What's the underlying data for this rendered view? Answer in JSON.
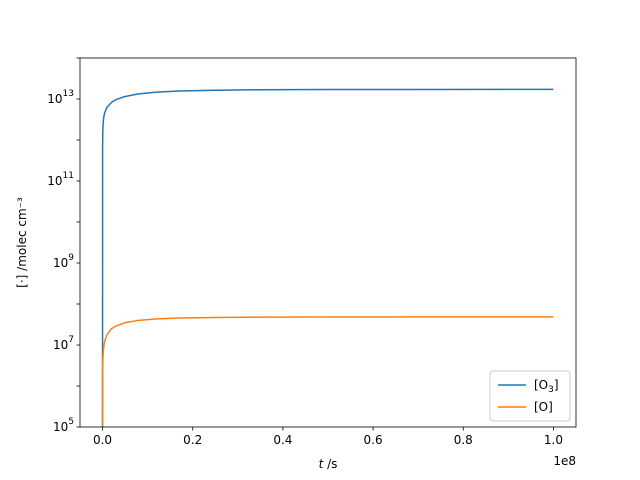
{
  "chart_data": {
    "type": "line",
    "xlabel": "t /s",
    "ylabel": "[·] /molec cm⁻³",
    "x_offset_label": "1e8",
    "xlim": [
      -5000000,
      105000000
    ],
    "ylim": [
      100000,
      100000000000000
    ],
    "yscale": "log",
    "x_ticks": [
      0,
      0.2,
      0.4,
      0.6,
      0.8,
      1.0
    ],
    "x_tick_labels": [
      "0.0",
      "0.2",
      "0.4",
      "0.6",
      "0.8",
      "1.0"
    ],
    "y_tick_exponents": [
      5,
      7,
      9,
      11,
      13
    ],
    "y_tick_base": "10",
    "grid": false,
    "legend_position": "bottom-right",
    "series": [
      {
        "name": "[O3]",
        "color": "#1f77b4",
        "x": [
          0,
          10000,
          50000,
          100000,
          200000,
          300000,
          500000,
          1000000,
          2000000,
          3000000,
          5000000,
          8000000,
          12000000,
          17000000,
          25000000,
          35000000,
          50000000,
          70000000,
          100000000
        ],
        "y": [
          100000,
          600000000000,
          1500000000000,
          2200000000000,
          3100000000000,
          3800000000000,
          4700000000000,
          6300000000000,
          8300000000000,
          9700000000000,
          11500000000000,
          13300000000000,
          14700000000000,
          15700000000000,
          16400000000000,
          16800000000000,
          17000000000000,
          17100000000000,
          17200000000000
        ]
      },
      {
        "name": "[O]",
        "color": "#ff7f0e",
        "x": [
          0,
          10000,
          50000,
          100000,
          200000,
          300000,
          500000,
          1000000,
          2000000,
          3000000,
          5000000,
          8000000,
          12000000,
          17000000,
          25000000,
          35000000,
          50000000,
          70000000,
          100000000
        ],
        "y": [
          100000,
          1400000,
          3500000,
          5200000,
          7600000,
          9500000,
          12500000,
          18000000,
          25000000,
          29000000,
          35000000,
          40000000,
          43500000,
          45500000,
          47000000,
          47800000,
          48200000,
          48400000,
          48500000
        ]
      }
    ]
  }
}
